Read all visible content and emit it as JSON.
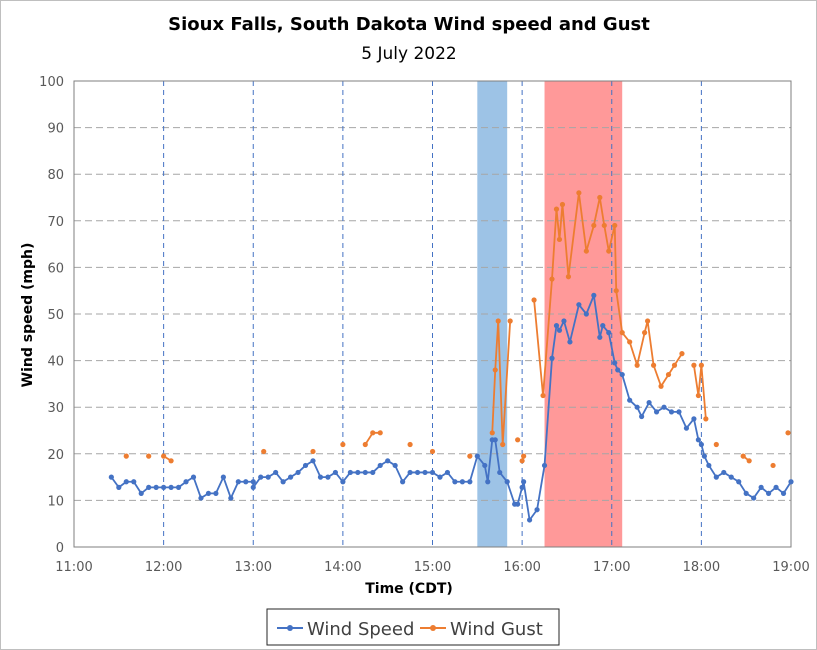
{
  "chart_data": {
    "type": "line",
    "title": "Sioux Falls, South Dakota Wind speed and Gust",
    "subtitle": "5 July 2022",
    "xlabel": "Time (CDT)",
    "ylabel": "Wind speed (mph)",
    "xlim": [
      "11:00",
      "19:00"
    ],
    "ylim": [
      0,
      100
    ],
    "y_ticks": [
      0,
      10,
      20,
      30,
      40,
      50,
      60,
      70,
      80,
      90,
      100
    ],
    "x_ticks": [
      "11:00",
      "12:00",
      "13:00",
      "14:00",
      "15:00",
      "16:00",
      "17:00",
      "18:00",
      "19:00"
    ],
    "grid": true,
    "legend_position": "bottom-center",
    "colors": {
      "wind_speed": "#4472c4",
      "wind_gust": "#ed7d31",
      "shade_blue": "#9dc3e6",
      "shade_red": "#ff9999"
    },
    "shaded_regions": [
      {
        "start": "15:30",
        "end": "15:50",
        "color": "#9dc3e6"
      },
      {
        "start": "16:15",
        "end": "17:07",
        "color": "#ff9999"
      }
    ],
    "series": [
      {
        "name": "Wind Speed",
        "points": [
          [
            "11:25",
            15
          ],
          [
            "11:30",
            12.8
          ],
          [
            "11:35",
            14
          ],
          [
            "11:40",
            14
          ],
          [
            "11:45",
            11.5
          ],
          [
            "11:50",
            12.8
          ],
          [
            "11:55",
            12.8
          ],
          [
            "12:00",
            12.8
          ],
          [
            "12:05",
            12.8
          ],
          [
            "12:10",
            12.8
          ],
          [
            "12:15",
            14
          ],
          [
            "12:20",
            15
          ],
          [
            "12:25",
            10.5
          ],
          [
            "12:30",
            11.5
          ],
          [
            "12:35",
            11.5
          ],
          [
            "12:40",
            15
          ],
          [
            "12:45",
            10.5
          ],
          [
            "12:50",
            14
          ],
          [
            "12:55",
            14
          ],
          [
            "13:00",
            14
          ],
          [
            "13:00",
            12.8
          ],
          [
            "13:05",
            15
          ],
          [
            "13:10",
            15
          ],
          [
            "13:15",
            16
          ],
          [
            "13:20",
            14
          ],
          [
            "13:25",
            15
          ],
          [
            "13:30",
            16
          ],
          [
            "13:35",
            17.5
          ],
          [
            "13:40",
            18.5
          ],
          [
            "13:45",
            15
          ],
          [
            "13:50",
            15
          ],
          [
            "13:55",
            16
          ],
          [
            "14:00",
            14
          ],
          [
            "14:05",
            16
          ],
          [
            "14:10",
            16
          ],
          [
            "14:15",
            16
          ],
          [
            "14:20",
            16
          ],
          [
            "14:25",
            17.5
          ],
          [
            "14:30",
            18.5
          ],
          [
            "14:35",
            17.5
          ],
          [
            "14:40",
            14
          ],
          [
            "14:45",
            16
          ],
          [
            "14:50",
            16
          ],
          [
            "14:55",
            16
          ],
          [
            "15:00",
            16
          ],
          [
            "15:05",
            15
          ],
          [
            "15:10",
            16
          ],
          [
            "15:15",
            14
          ],
          [
            "15:20",
            14
          ],
          [
            "15:25",
            14
          ],
          [
            "15:30",
            19.5
          ],
          [
            "15:35",
            17.5
          ],
          [
            "15:37",
            14
          ],
          [
            "15:40",
            23
          ],
          [
            "15:42",
            23
          ],
          [
            "15:45",
            16
          ],
          [
            "15:50",
            14
          ],
          [
            "15:55",
            9.2
          ],
          [
            "15:57",
            9.2
          ],
          [
            "16:00",
            12.8
          ],
          [
            "16:01",
            14
          ],
          [
            "16:05",
            5.8
          ],
          [
            "16:10",
            8
          ],
          [
            "16:15",
            17.5
          ],
          [
            "16:20",
            40.5
          ],
          [
            "16:23",
            47.5
          ],
          [
            "16:25",
            46.5
          ],
          [
            "16:28",
            48.5
          ],
          [
            "16:32",
            44
          ],
          [
            "16:38",
            52
          ],
          [
            "16:43",
            50
          ],
          [
            "16:48",
            54
          ],
          [
            "16:52",
            45
          ],
          [
            "16:54",
            47.5
          ],
          [
            "16:58",
            46
          ],
          [
            "17:02",
            39.5
          ],
          [
            "17:04",
            38
          ],
          [
            "17:07",
            37
          ],
          [
            "17:12",
            31.5
          ],
          [
            "17:17",
            30
          ],
          [
            "17:20",
            28
          ],
          [
            "17:25",
            31
          ],
          [
            "17:30",
            29
          ],
          [
            "17:35",
            30
          ],
          [
            "17:40",
            29
          ],
          [
            "17:45",
            29
          ],
          [
            "17:50",
            25.5
          ],
          [
            "17:55",
            27.5
          ],
          [
            "17:58",
            23
          ],
          [
            "18:00",
            22
          ],
          [
            "18:02",
            19.5
          ],
          [
            "18:05",
            17.5
          ],
          [
            "18:10",
            15
          ],
          [
            "18:15",
            16
          ],
          [
            "18:20",
            15
          ],
          [
            "18:25",
            14
          ],
          [
            "18:30",
            11.5
          ],
          [
            "18:35",
            10.5
          ],
          [
            "18:40",
            12.8
          ],
          [
            "18:45",
            11.5
          ],
          [
            "18:50",
            12.8
          ],
          [
            "18:55",
            11.5
          ],
          [
            "19:00",
            14
          ]
        ]
      },
      {
        "name": "Wind Gust",
        "segments": [
          [
            [
              "11:35",
              19.5
            ]
          ],
          [
            [
              "11:50",
              19.5
            ]
          ],
          [
            [
              "12:00",
              19.5
            ],
            [
              "12:05",
              18.5
            ]
          ],
          [
            [
              "13:07",
              20.5
            ]
          ],
          [
            [
              "13:40",
              20.5
            ]
          ],
          [
            [
              "14:00",
              22
            ]
          ],
          [
            [
              "14:15",
              22
            ],
            [
              "14:20",
              24.5
            ],
            [
              "14:25",
              24.5
            ]
          ],
          [
            [
              "14:45",
              22
            ]
          ],
          [
            [
              "15:00",
              20.5
            ]
          ],
          [
            [
              "15:25",
              19.5
            ]
          ],
          [
            [
              "15:40",
              24.5
            ],
            [
              "15:42",
              38
            ],
            [
              "15:44",
              48.5
            ],
            [
              "15:47",
              22
            ],
            [
              "15:52",
              48.5
            ]
          ],
          [
            [
              "15:57",
              23
            ]
          ],
          [
            [
              "16:00",
              18.5
            ],
            [
              "16:01",
              19.5
            ]
          ],
          [
            [
              "16:08",
              53
            ],
            [
              "16:14",
              32.5
            ],
            [
              "16:20",
              57.5
            ],
            [
              "16:23",
              72.5
            ],
            [
              "16:25",
              66
            ],
            [
              "16:27",
              73.5
            ],
            [
              "16:31",
              58
            ],
            [
              "16:38",
              76
            ],
            [
              "16:43",
              63.5
            ],
            [
              "16:48",
              69
            ],
            [
              "16:52",
              75
            ],
            [
              "16:55",
              69
            ],
            [
              "16:58",
              63.5
            ],
            [
              "17:02",
              69
            ],
            [
              "17:03",
              55
            ],
            [
              "17:07",
              46
            ],
            [
              "17:12",
              44
            ],
            [
              "17:17",
              39
            ],
            [
              "17:22",
              46
            ],
            [
              "17:24",
              48.5
            ],
            [
              "17:28",
              39
            ],
            [
              "17:33",
              34.5
            ],
            [
              "17:38",
              37
            ],
            [
              "17:42",
              39
            ],
            [
              "17:47",
              41.5
            ]
          ],
          [
            [
              "17:55",
              39
            ],
            [
              "17:58",
              32.5
            ],
            [
              "18:00",
              39
            ],
            [
              "18:03",
              27.5
            ]
          ],
          [
            [
              "18:10",
              22
            ]
          ],
          [
            [
              "18:28",
              19.5
            ],
            [
              "18:32",
              18.5
            ]
          ],
          [
            [
              "18:48",
              17.5
            ]
          ],
          [
            [
              "18:58",
              24.5
            ]
          ]
        ]
      }
    ]
  }
}
